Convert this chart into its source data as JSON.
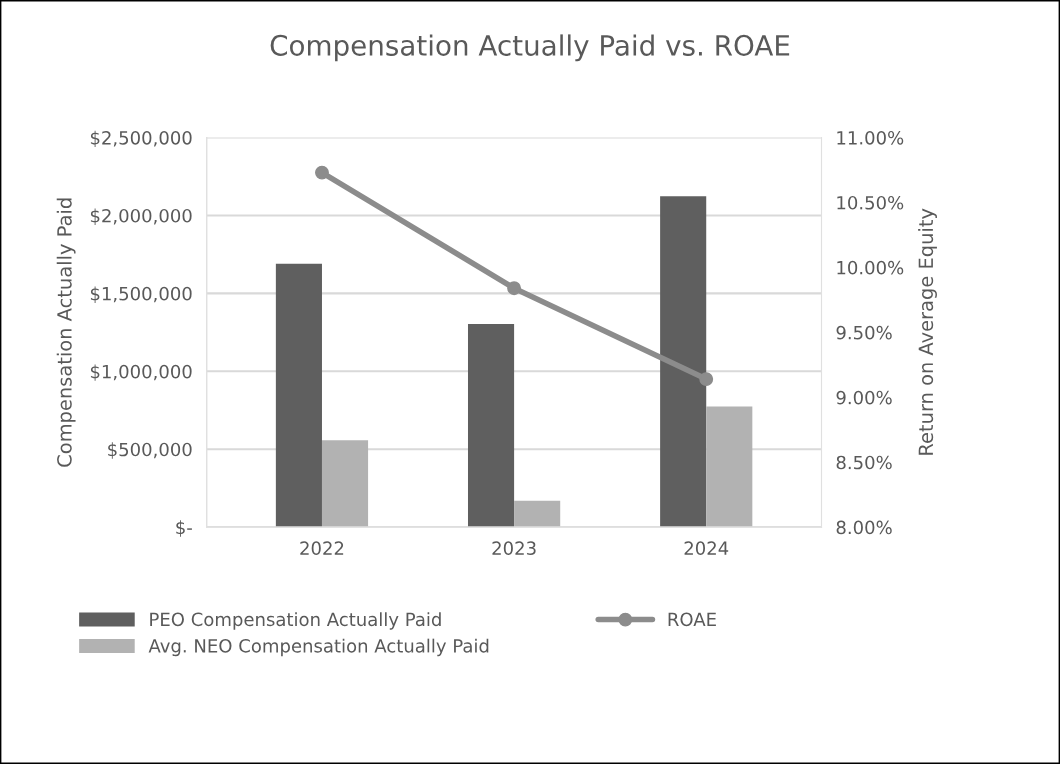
{
  "chart_data": {
    "type": "bar",
    "title": "Compensation Actually Paid vs. ROAE",
    "categories": [
      "2022",
      "2023",
      "2024"
    ],
    "ylabel": "Compensation Actually Paid",
    "y2label": "Return on Average Equity",
    "series": [
      {
        "name": "PEO Compensation Actually Paid",
        "color": "#5f5f5f",
        "values": [
          1690000,
          1304000,
          2123000
        ]
      },
      {
        "name": "Avg. NEO Compensation Actually Paid",
        "color": "#b2b2b2",
        "values": [
          558000,
          170000,
          774000
        ]
      },
      {
        "name": "ROAE",
        "type": "line",
        "axis": "y2",
        "color": "#8c8c8c",
        "marker": "circle",
        "values": [
          10.73,
          9.84,
          9.14
        ]
      }
    ],
    "ylim": [
      0,
      2500000
    ],
    "yticks": [
      {
        "value": 0,
        "label": "$-"
      },
      {
        "value": 500000,
        "label": "$500,000"
      },
      {
        "value": 1000000,
        "label": "$1,000,000"
      },
      {
        "value": 1500000,
        "label": "$1,500,000"
      },
      {
        "value": 2000000,
        "label": "$2,000,000"
      },
      {
        "value": 2500000,
        "label": "$2,500,000"
      }
    ],
    "y2lim": [
      8,
      11
    ],
    "y2ticks": [
      {
        "value": 8,
        "label": "8.00%"
      },
      {
        "value": 8.5,
        "label": "8.50%"
      },
      {
        "value": 9,
        "label": "9.00%"
      },
      {
        "value": 9.5,
        "label": "9.50%"
      },
      {
        "value": 10,
        "label": "10.00%"
      },
      {
        "value": 10.5,
        "label": "10.50%"
      },
      {
        "value": 11,
        "label": "11.00%"
      }
    ],
    "grid": "y",
    "legend": "bottom"
  }
}
